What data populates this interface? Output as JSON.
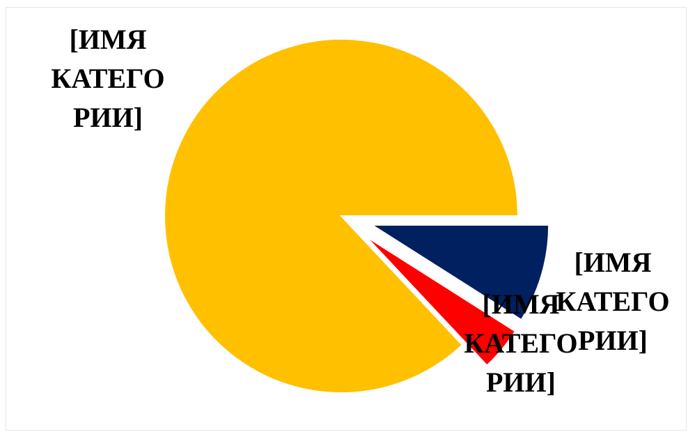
{
  "chart_data": {
    "type": "pie",
    "title": "",
    "start_angle_deg": 0,
    "direction": "clockwise",
    "slices": [
      {
        "label_lines": [
          "[ИМЯ",
          "КАТЕГО",
          "РИИ]"
        ],
        "value": 9,
        "color": "#002060",
        "exploded": true
      },
      {
        "label_lines": [
          "[ИМЯ",
          "КАТЕГО",
          "РИИ]"
        ],
        "value": 4,
        "color": "#FF0000",
        "exploded": true
      },
      {
        "label_lines": [
          "[ИМЯ",
          "КАТЕГО",
          "РИИ]"
        ],
        "value": 87,
        "color": "#FFC000",
        "exploded": false
      }
    ],
    "legend": "none",
    "data_labels": "category name"
  }
}
